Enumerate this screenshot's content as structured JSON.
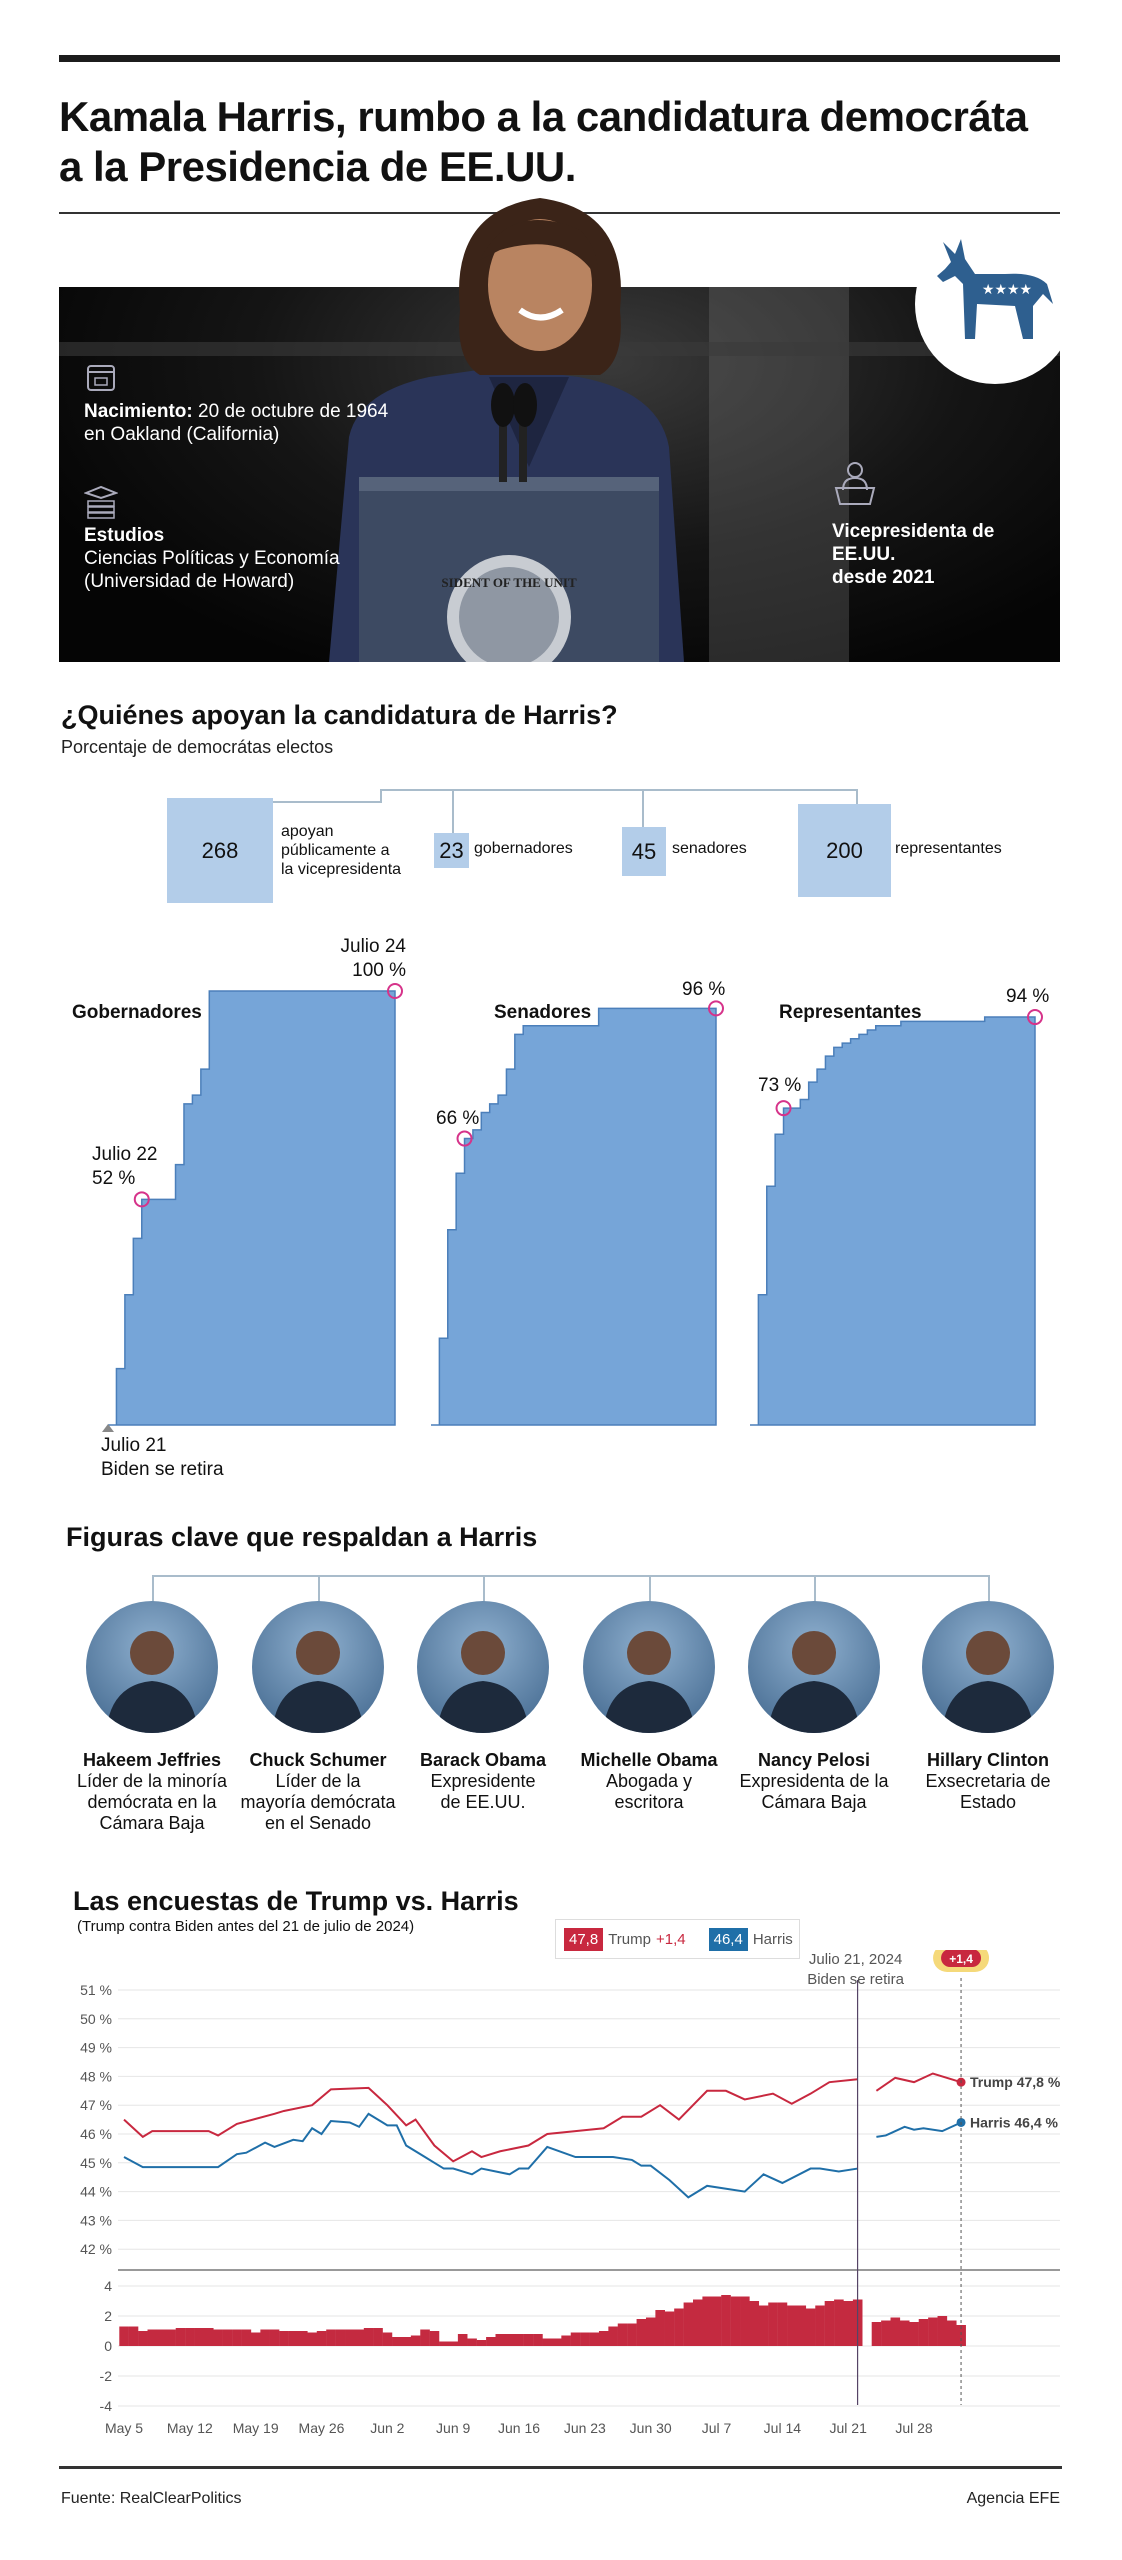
{
  "header": {
    "title_line1": "Kamala Harris, rumbo a la candidatura democráta",
    "title_line2": "a la Presidencia de EE.UU."
  },
  "profile": {
    "birth_label": "Nacimiento:",
    "birth_text": " 20 de octubre de 1964",
    "birth_place": "en Oakland (California)",
    "studies_label": "Estudios",
    "studies_line1": "Ciencias Políticas y Economía",
    "studies_line2": "(Universidad de Howard)",
    "vp_line1": "Vicepresidenta de EE.UU.",
    "vp_line2": "desde 2021",
    "seal_text": "SIDENT OF THE UNIT",
    "party_icon": "democratic-donkey-icon",
    "party_color": "#2e5f8f"
  },
  "support": {
    "title": "¿Quiénes apoyan la candidatura de Harris?",
    "subtitle": "Porcentaje de democrátas electos",
    "total": {
      "value": "268",
      "label_1": "apoyan",
      "label_2": "públicamente a",
      "label_3": "la vicepresidenta"
    },
    "groups": [
      {
        "value": "23",
        "label": "gobernadores"
      },
      {
        "value": "45",
        "label": "senadores"
      },
      {
        "value": "200",
        "label": "representantes"
      }
    ],
    "start_note_1": "Julio 21",
    "start_note_2": "Biden se retira"
  },
  "chart_data": [
    {
      "type": "area",
      "title": "Gobernadores",
      "x_range": [
        "Julio 21",
        "Julio 24"
      ],
      "ylim": [
        0,
        100
      ],
      "values": [
        0,
        13,
        30,
        43,
        52,
        52,
        52,
        52,
        60,
        74,
        76,
        82,
        100,
        100,
        100,
        100,
        100,
        100,
        100,
        100,
        100,
        100,
        100,
        100,
        100,
        100,
        100,
        100,
        100,
        100,
        100,
        100,
        100,
        100,
        100
      ],
      "annotations": [
        {
          "date": "Julio 22",
          "label": "52 %",
          "value": 52
        },
        {
          "date": "Julio 24",
          "label": "100 %",
          "value": 100
        }
      ],
      "color": "#76a5d8"
    },
    {
      "type": "area",
      "title": "Senadores",
      "ylim": [
        0,
        100
      ],
      "values": [
        0,
        20,
        45,
        58,
        66,
        68,
        72,
        74,
        76,
        82,
        90,
        92,
        92,
        92,
        92,
        92,
        92,
        92,
        92,
        92,
        96,
        96,
        96,
        96,
        96,
        96,
        96,
        96,
        96,
        96,
        96,
        96,
        96,
        96,
        96
      ],
      "annotations": [
        {
          "label": "66 %",
          "value": 66
        },
        {
          "label": "96 %",
          "value": 96
        }
      ],
      "color": "#76a5d8"
    },
    {
      "type": "area",
      "title": "Representantes",
      "ylim": [
        0,
        100
      ],
      "values": [
        0,
        30,
        55,
        67,
        73,
        73,
        75,
        79,
        82,
        85,
        87,
        88,
        89,
        90,
        91,
        92,
        92,
        92,
        93,
        93,
        93,
        93,
        93,
        93,
        93,
        93,
        93,
        93,
        94,
        94,
        94,
        94,
        94,
        94,
        94
      ],
      "annotations": [
        {
          "label": "73 %",
          "value": 73
        },
        {
          "label": "94 %",
          "value": 94
        }
      ],
      "color": "#76a5d8"
    },
    {
      "type": "line",
      "title": "Las encuestas de Trump vs. Harris",
      "subtitle": "(Trump contra Biden antes del 21 de julio de 2024)",
      "ylim": [
        42,
        51
      ],
      "yticks": [
        "51 %",
        "50 %",
        "49 %",
        "48 %",
        "47 %",
        "46 %",
        "45 %",
        "44 %",
        "43 %",
        "42 %"
      ],
      "xticks": [
        "May 5",
        "May 12",
        "May 19",
        "May 26",
        "Jun 2",
        "Jun 9",
        "Jun 16",
        "Jun 23",
        "Jun 30",
        "Jul 7",
        "Jul 14",
        "Jul 21",
        "Jul 28"
      ],
      "legend": {
        "trump_value": "47,8",
        "trump_name": "Trump",
        "trump_lead": "+1,4",
        "harris_value": "46,4",
        "harris_name": "Harris"
      },
      "event": {
        "date": "2024-07-22",
        "label_1": "Julio 21, 2024",
        "label_2": "Biden se retira"
      },
      "latest": {
        "date": "2024-08-02",
        "badge": "+1,4",
        "trump_label": "Trump 47,8 %",
        "harris_label": "Harris 46,4 %"
      },
      "grid": true,
      "series": [
        {
          "name": "Trump",
          "color": "#c8283f",
          "segments": [
            [
              [
                "2024-05-05",
                46.5
              ],
              [
                "2024-05-07",
                45.9
              ],
              [
                "2024-05-08",
                46.1
              ],
              [
                "2024-05-14",
                46.1
              ],
              [
                "2024-05-15",
                45.95
              ],
              [
                "2024-05-17",
                46.35
              ],
              [
                "2024-05-21",
                46.7
              ],
              [
                "2024-05-22",
                46.8
              ],
              [
                "2024-05-25",
                47.0
              ],
              [
                "2024-05-27",
                47.55
              ],
              [
                "2024-05-31",
                47.6
              ],
              [
                "2024-06-02",
                47.0
              ],
              [
                "2024-06-04",
                46.3
              ],
              [
                "2024-06-05",
                46.5
              ],
              [
                "2024-06-07",
                45.6
              ],
              [
                "2024-06-09",
                45.05
              ],
              [
                "2024-06-11",
                45.4
              ],
              [
                "2024-06-12",
                45.2
              ],
              [
                "2024-06-14",
                45.4
              ],
              [
                "2024-06-17",
                45.6
              ],
              [
                "2024-06-19",
                46.0
              ],
              [
                "2024-06-22",
                46.1
              ],
              [
                "2024-06-25",
                46.2
              ],
              [
                "2024-06-27",
                46.6
              ],
              [
                "2024-06-29",
                46.6
              ],
              [
                "2024-07-01",
                47.0
              ],
              [
                "2024-07-03",
                46.5
              ],
              [
                "2024-07-06",
                47.5
              ],
              [
                "2024-07-08",
                47.5
              ],
              [
                "2024-07-10",
                47.2
              ],
              [
                "2024-07-13",
                47.4
              ],
              [
                "2024-07-15",
                47.05
              ],
              [
                "2024-07-17",
                47.4
              ],
              [
                "2024-07-19",
                47.8
              ],
              [
                "2024-07-22",
                47.9
              ]
            ],
            [
              [
                "2024-07-24",
                47.5
              ],
              [
                "2024-07-26",
                47.95
              ],
              [
                "2024-07-28",
                47.8
              ],
              [
                "2024-07-30",
                48.1
              ],
              [
                "2024-08-02",
                47.8
              ]
            ]
          ]
        },
        {
          "name": "Harris",
          "color": "#1f6fa8",
          "segments": [
            [
              [
                "2024-05-05",
                45.2
              ],
              [
                "2024-05-07",
                44.85
              ],
              [
                "2024-05-15",
                44.85
              ],
              [
                "2024-05-17",
                45.3
              ],
              [
                "2024-05-18",
                45.35
              ],
              [
                "2024-05-20",
                45.7
              ],
              [
                "2024-05-21",
                45.55
              ],
              [
                "2024-05-23",
                45.8
              ],
              [
                "2024-05-24",
                45.75
              ],
              [
                "2024-05-25",
                46.2
              ],
              [
                "2024-05-26",
                46.0
              ],
              [
                "2024-05-27",
                46.45
              ],
              [
                "2024-05-29",
                46.4
              ],
              [
                "2024-05-30",
                46.25
              ],
              [
                "2024-05-31",
                46.7
              ],
              [
                "2024-06-02",
                46.3
              ],
              [
                "2024-06-03",
                46.3
              ],
              [
                "2024-06-04",
                45.6
              ],
              [
                "2024-06-06",
                45.2
              ],
              [
                "2024-06-08",
                44.8
              ],
              [
                "2024-06-09",
                44.8
              ],
              [
                "2024-06-11",
                44.6
              ],
              [
                "2024-06-12",
                44.8
              ],
              [
                "2024-06-15",
                44.6
              ],
              [
                "2024-06-16",
                44.8
              ],
              [
                "2024-06-17",
                44.8
              ],
              [
                "2024-06-19",
                45.55
              ],
              [
                "2024-06-22",
                45.2
              ],
              [
                "2024-06-26",
                45.2
              ],
              [
                "2024-06-28",
                45.1
              ],
              [
                "2024-06-29",
                44.9
              ],
              [
                "2024-06-30",
                44.9
              ],
              [
                "2024-07-02",
                44.4
              ],
              [
                "2024-07-04",
                43.8
              ],
              [
                "2024-07-06",
                44.2
              ],
              [
                "2024-07-10",
                44.0
              ],
              [
                "2024-07-12",
                44.6
              ],
              [
                "2024-07-14",
                44.3
              ],
              [
                "2024-07-17",
                44.8
              ],
              [
                "2024-07-18",
                44.8
              ],
              [
                "2024-07-20",
                44.7
              ],
              [
                "2024-07-22",
                44.8
              ]
            ],
            [
              [
                "2024-07-24",
                45.9
              ],
              [
                "2024-07-25",
                45.95
              ],
              [
                "2024-07-27",
                46.25
              ],
              [
                "2024-07-28",
                46.15
              ],
              [
                "2024-07-29",
                46.2
              ],
              [
                "2024-07-31",
                46.1
              ],
              [
                "2024-08-02",
                46.4
              ]
            ]
          ]
        }
      ]
    },
    {
      "type": "bar",
      "ylim": [
        -4,
        4
      ],
      "yticks": [
        "4",
        "2",
        "0",
        "-2",
        "-4"
      ],
      "color": "#c42a40",
      "first_date": "2024-05-05",
      "daily_spread": [
        1.3,
        1.3,
        1.0,
        1.1,
        1.1,
        1.1,
        1.2,
        1.2,
        1.2,
        1.2,
        1.1,
        1.1,
        1.1,
        1.1,
        0.9,
        1.1,
        1.1,
        1.0,
        1.0,
        1.0,
        0.9,
        1.0,
        1.1,
        1.1,
        1.1,
        1.1,
        1.2,
        1.2,
        0.9,
        0.6,
        0.6,
        0.7,
        1.1,
        1.0,
        0.3,
        0.3,
        0.8,
        0.5,
        0.4,
        0.6,
        0.8,
        0.8,
        0.8,
        0.8,
        0.8,
        0.5,
        0.5,
        0.7,
        0.9,
        0.9,
        0.9,
        1.0,
        1.3,
        1.5,
        1.5,
        1.8,
        1.9,
        2.4,
        2.3,
        2.5,
        2.9,
        3.1,
        3.3,
        3.3,
        3.4,
        3.3,
        3.3,
        3.0,
        2.7,
        2.9,
        2.9,
        2.7,
        2.7,
        2.5,
        2.7,
        3.0,
        3.1,
        3.0,
        3.1,
        null,
        1.6,
        1.7,
        1.9,
        1.7,
        1.6,
        1.8,
        1.9,
        2.0,
        1.7,
        1.4
      ]
    }
  ],
  "figures": {
    "title": "Figuras clave que respaldan a Harris",
    "people": [
      {
        "name": "Hakeem Jeffries",
        "role": [
          "Líder de la minoría",
          "demócrata en la",
          "Cámara Baja"
        ]
      },
      {
        "name": "Chuck Schumer",
        "role": [
          "Líder de la",
          "mayoría demócrata",
          "en el Senado"
        ]
      },
      {
        "name": "Barack Obama",
        "role": [
          "Expresidente",
          "de EE.UU."
        ]
      },
      {
        "name": "Michelle Obama",
        "role": [
          "Abogada y",
          "escritora"
        ]
      },
      {
        "name": "Nancy Pelosi",
        "role": [
          "Expresidenta de la",
          "Cámara Baja"
        ]
      },
      {
        "name": "Hillary Clinton",
        "role": [
          "Exsecretaria de",
          "Estado"
        ]
      }
    ]
  },
  "footer": {
    "source": "Fuente: RealClearPolitics",
    "agency": "Agencia EFE"
  }
}
